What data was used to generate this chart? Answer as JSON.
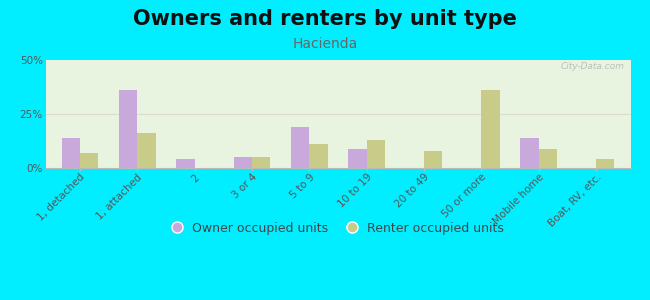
{
  "title": "Owners and renters by unit type",
  "subtitle": "Hacienda",
  "categories": [
    "1, detached",
    "1, attached",
    "2",
    "3 or 4",
    "5 to 9",
    "10 to 19",
    "20 to 49",
    "50 or more",
    "Mobile home",
    "Boat, RV, etc."
  ],
  "owner_values": [
    14,
    36,
    4,
    5,
    19,
    9,
    0,
    0,
    14,
    0
  ],
  "renter_values": [
    7,
    16,
    0,
    5,
    11,
    13,
    8,
    36,
    9,
    4
  ],
  "owner_color": "#c9a8dc",
  "renter_color": "#c8cc88",
  "bg_outer": "#00eeff",
  "bg_plot_top": "#e8f4e0",
  "bg_plot_bottom": "#f5f5e5",
  "ylim": [
    0,
    50
  ],
  "yticks": [
    0,
    25,
    50
  ],
  "ytick_labels": [
    "0%",
    "25%",
    "50%"
  ],
  "grid_color": "#ddddcc",
  "legend_owner": "Owner occupied units",
  "legend_renter": "Renter occupied units",
  "title_fontsize": 15,
  "subtitle_fontsize": 10,
  "axis_label_fontsize": 7.5,
  "legend_fontsize": 9,
  "watermark": "City-Data.com"
}
